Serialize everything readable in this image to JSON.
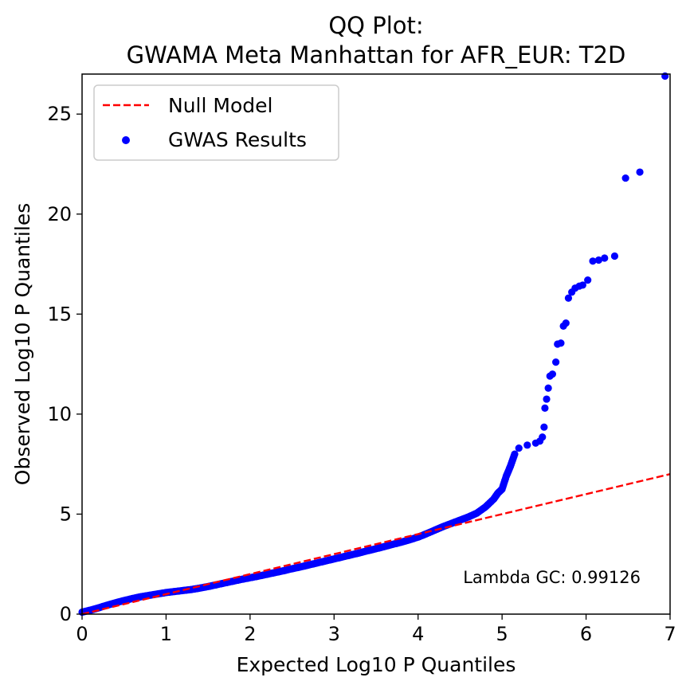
{
  "chart_data": {
    "type": "scatter",
    "title_lines": [
      "QQ Plot:",
      "GWAMA Meta Manhattan for AFR_EUR: T2D"
    ],
    "xlabel": "Expected Log10 P Quantiles",
    "ylabel": "Observed Log10 P Quantiles",
    "xlim": [
      0,
      7
    ],
    "ylim": [
      0,
      27
    ],
    "x_ticks": [
      "0",
      "1",
      "2",
      "3",
      "4",
      "5",
      "6",
      "7"
    ],
    "y_ticks": [
      "0",
      "5",
      "10",
      "15",
      "20",
      "25"
    ],
    "grid": false,
    "legend_position": "upper-left",
    "annotation": "Lambda GC: 0.99126",
    "colors": {
      "null_model": "#ff0000",
      "gwas_results": "#0000ff"
    },
    "null_model": {
      "name": "Null Model",
      "x": [
        0,
        7
      ],
      "y": [
        0,
        7
      ]
    },
    "gwas_results": {
      "name": "GWAS Results",
      "points": [
        [
          0.0,
          0.1
        ],
        [
          0.1,
          0.2
        ],
        [
          0.2,
          0.32
        ],
        [
          0.3,
          0.45
        ],
        [
          0.4,
          0.57
        ],
        [
          0.5,
          0.68
        ],
        [
          0.6,
          0.78
        ],
        [
          0.7,
          0.87
        ],
        [
          0.8,
          0.94
        ],
        [
          0.9,
          1.01
        ],
        [
          1.0,
          1.08
        ],
        [
          1.1,
          1.13
        ],
        [
          1.2,
          1.18
        ],
        [
          1.3,
          1.23
        ],
        [
          1.4,
          1.3
        ],
        [
          1.5,
          1.38
        ],
        [
          1.6,
          1.47
        ],
        [
          1.7,
          1.56
        ],
        [
          1.8,
          1.65
        ],
        [
          1.9,
          1.74
        ],
        [
          2.0,
          1.82
        ],
        [
          2.1,
          1.9
        ],
        [
          2.2,
          1.99
        ],
        [
          2.3,
          2.08
        ],
        [
          2.4,
          2.17
        ],
        [
          2.5,
          2.27
        ],
        [
          2.6,
          2.36
        ],
        [
          2.7,
          2.46
        ],
        [
          2.8,
          2.56
        ],
        [
          2.9,
          2.66
        ],
        [
          3.0,
          2.76
        ],
        [
          3.1,
          2.86
        ],
        [
          3.2,
          2.96
        ],
        [
          3.3,
          3.06
        ],
        [
          3.4,
          3.17
        ],
        [
          3.5,
          3.27
        ],
        [
          3.6,
          3.38
        ],
        [
          3.7,
          3.49
        ],
        [
          3.8,
          3.6
        ],
        [
          3.9,
          3.72
        ],
        [
          4.0,
          3.85
        ],
        [
          4.1,
          4.02
        ],
        [
          4.2,
          4.2
        ],
        [
          4.3,
          4.38
        ],
        [
          4.4,
          4.54
        ],
        [
          4.5,
          4.7
        ],
        [
          4.6,
          4.86
        ],
        [
          4.7,
          5.05
        ],
        [
          4.8,
          5.35
        ],
        [
          4.9,
          5.75
        ],
        [
          4.95,
          6.05
        ],
        [
          5.0,
          6.25
        ],
        [
          5.05,
          6.9
        ],
        [
          5.1,
          7.4
        ],
        [
          5.15,
          8.0
        ],
        [
          5.2,
          8.3
        ],
        [
          5.3,
          8.45
        ],
        [
          5.4,
          8.55
        ],
        [
          5.45,
          8.65
        ],
        [
          5.48,
          8.85
        ],
        [
          5.5,
          9.35
        ],
        [
          5.51,
          10.3
        ],
        [
          5.53,
          10.75
        ],
        [
          5.55,
          11.3
        ],
        [
          5.57,
          11.9
        ],
        [
          5.6,
          12.0
        ],
        [
          5.64,
          12.6
        ],
        [
          5.66,
          13.5
        ],
        [
          5.7,
          13.55
        ],
        [
          5.73,
          14.4
        ],
        [
          5.76,
          14.55
        ],
        [
          5.79,
          15.8
        ],
        [
          5.83,
          16.1
        ],
        [
          5.87,
          16.3
        ],
        [
          5.92,
          16.4
        ],
        [
          5.96,
          16.45
        ],
        [
          6.02,
          16.7
        ],
        [
          6.08,
          17.65
        ],
        [
          6.15,
          17.7
        ],
        [
          6.22,
          17.8
        ],
        [
          6.34,
          17.9
        ],
        [
          6.47,
          21.8
        ],
        [
          6.64,
          22.1
        ],
        [
          6.94,
          26.9
        ]
      ]
    }
  }
}
